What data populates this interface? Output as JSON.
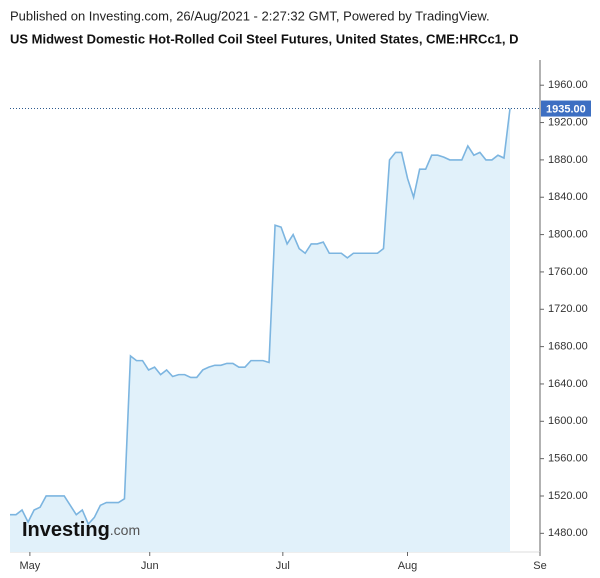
{
  "chart_data": {
    "type": "area",
    "publisher": "Published on Investing.com, 26/Aug/2021 - 2:27:32 GMT, Powered by TradingView.",
    "title": "US Midwest Domestic Hot-Rolled Coil Steel Futures, United States, CME:HRCc1, D",
    "logo": "Investing",
    "logo_suffix": ".com",
    "color": "#7cb5e0",
    "fill": "#e1f1fa",
    "values": [
      1500,
      1500,
      1505,
      1492,
      1505,
      1508,
      1520,
      1520,
      1520,
      1520,
      1510,
      1500,
      1505,
      1490,
      1497,
      1510,
      1513,
      1513,
      1513,
      1517,
      1670,
      1665,
      1665,
      1655,
      1658,
      1650,
      1655,
      1648,
      1650,
      1650,
      1647,
      1647,
      1655,
      1658,
      1660,
      1660,
      1662,
      1662,
      1658,
      1658,
      1665,
      1665,
      1665,
      1663,
      1810,
      1808,
      1790,
      1800,
      1785,
      1780,
      1790,
      1790,
      1792,
      1780,
      1780,
      1780,
      1775,
      1780,
      1780,
      1780,
      1780,
      1780,
      1785,
      1880,
      1888,
      1888,
      1860,
      1840,
      1870,
      1870,
      1885,
      1885,
      1883,
      1880,
      1880,
      1880,
      1895,
      1885,
      1888,
      1880,
      1880,
      1885,
      1882,
      1935
    ],
    "last_value_label": "1935.00",
    "xlim": [
      0,
      88
    ],
    "xticks": [
      {
        "value": 3.3,
        "label": "May"
      },
      {
        "value": 23.2,
        "label": "Jun"
      },
      {
        "value": 45.3,
        "label": "Jul"
      },
      {
        "value": 66,
        "label": "Aug"
      },
      {
        "value": 88,
        "label": "Se"
      }
    ],
    "ylim": [
      1460,
      1987
    ],
    "yticks": [
      {
        "value": 1480,
        "label": "1480.00"
      },
      {
        "value": 1520,
        "label": "1520.00"
      },
      {
        "value": 1560,
        "label": "1560.00"
      },
      {
        "value": 1600,
        "label": "1600.00"
      },
      {
        "value": 1640,
        "label": "1640.00"
      },
      {
        "value": 1680,
        "label": "1680.00"
      },
      {
        "value": 1720,
        "label": "1720.00"
      },
      {
        "value": 1760,
        "label": "1760.00"
      },
      {
        "value": 1800,
        "label": "1800.00"
      },
      {
        "value": 1840,
        "label": "1840.00"
      },
      {
        "value": 1880,
        "label": "1880.00"
      },
      {
        "value": 1920,
        "label": "1920.00"
      },
      {
        "value": 1960,
        "label": "1960.00"
      }
    ]
  }
}
